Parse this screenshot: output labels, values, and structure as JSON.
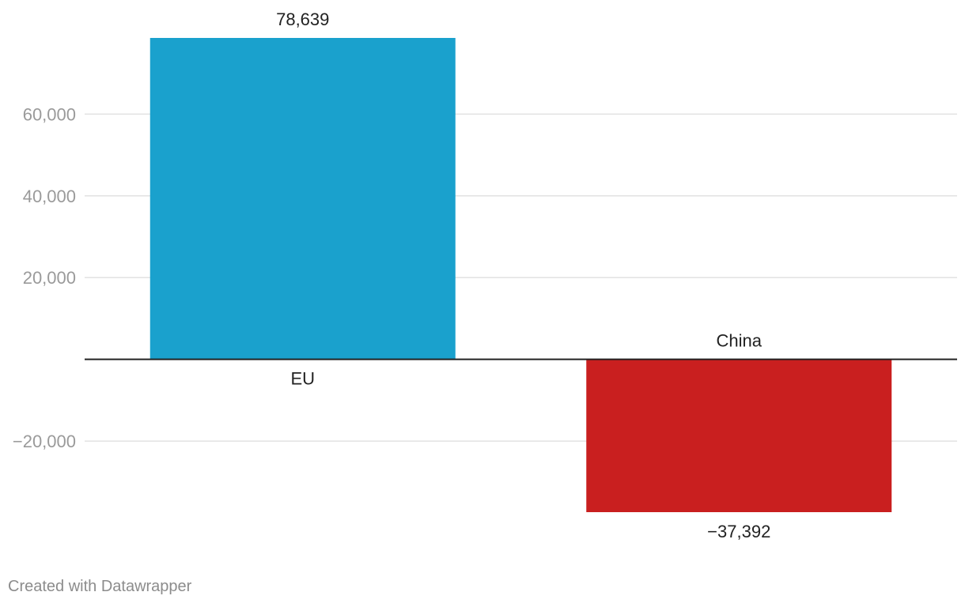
{
  "chart_data": {
    "type": "bar",
    "categories": [
      "EU",
      "China"
    ],
    "values": [
      78639,
      -37392
    ],
    "value_labels": [
      "78,639",
      "−37,392"
    ],
    "colors": [
      "#1aa1cd",
      "#c91f1f"
    ],
    "ylim": [
      -37392,
      78639
    ],
    "yticks": [
      {
        "value": 60000,
        "label": "60,000"
      },
      {
        "value": 40000,
        "label": "40,000"
      },
      {
        "value": 20000,
        "label": "20,000"
      },
      {
        "value": -20000,
        "label": "−20,000"
      }
    ],
    "grid": true,
    "title": "",
    "xlabel": "",
    "ylabel": ""
  },
  "footer": {
    "credit": "Created with Datawrapper"
  },
  "colors": {
    "gridline": "#e2e2e2",
    "baseline": "#222222",
    "tick_text": "#9a9a9a",
    "label_text": "#222222"
  }
}
